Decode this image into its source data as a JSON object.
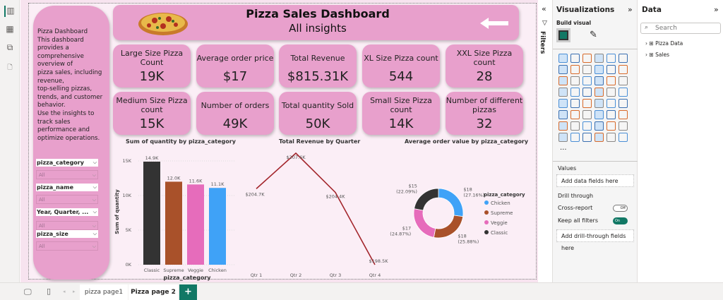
{
  "header": {
    "title": "Pizza Sales Dashboard",
    "subtitle": "All insights"
  },
  "description": "Pizza Dashboard\nThis dashboard provides a comprehensive overview of\n pizza sales, including revenue,\n top-selling pizzas, trends, and customer behavior.\nUse the insights to track sales performance and optimize operations.",
  "slicers": [
    {
      "label": "pizza_category",
      "value": "All"
    },
    {
      "label": "pizza_name",
      "value": "All"
    },
    {
      "label": "Year, Quarter, ...",
      "value": "All"
    },
    {
      "label": "pizza_size",
      "value": "All"
    }
  ],
  "kpis": [
    {
      "label": "Large Size Pizza Count",
      "value": "19K"
    },
    {
      "label": "Average order price",
      "value": "$17"
    },
    {
      "label": "Total Revenue",
      "value": "$815.31K"
    },
    {
      "label": "XL Size Pizza count",
      "value": "544"
    },
    {
      "label": "XXL Size Pizza count",
      "value": "28"
    },
    {
      "label": "Medium Size Pizza count",
      "value": "15K"
    },
    {
      "label": "Number of orders",
      "value": "49K"
    },
    {
      "label": "Total quantity Sold",
      "value": "50K"
    },
    {
      "label": "Small Size Pizza count",
      "value": "14K"
    },
    {
      "label": "Number of different pizzas",
      "value": "32"
    }
  ],
  "chart_data": [
    {
      "type": "bar",
      "title": "Sum of quantity by pizza_category",
      "xlabel": "pizza_category",
      "ylabel": "Sum of quantity",
      "categories": [
        "Classic",
        "Supreme",
        "Veggie",
        "Chicken"
      ],
      "values": [
        14900,
        12000,
        11600,
        11100
      ],
      "data_labels": [
        "14.9K",
        "12.0K",
        "11.6K",
        "11.1K"
      ],
      "yticks": [
        "0K",
        "5K",
        "10K",
        "15K"
      ],
      "ylim": [
        0,
        15000
      ],
      "colors": [
        "#333333",
        "#a9512a",
        "#e66cbb",
        "#3fa2f7"
      ],
      "grid": true
    },
    {
      "type": "line",
      "title": "Total Revenue by Quarter",
      "categories": [
        "Qtr 1",
        "Qtr 2",
        "Qtr 3",
        "Qtr 4"
      ],
      "values": [
        204.7,
        207.6,
        204.4,
        198.5
      ],
      "data_labels": [
        "$204.7K",
        "$207.6K",
        "$204.4K",
        "$198.5K"
      ],
      "color": "#a3262c"
    },
    {
      "type": "pie",
      "title": "Average order value by pizza_category",
      "legend_title": "pizza_category",
      "legend": "right",
      "slices": [
        {
          "name": "Chicken",
          "value": 18,
          "label": "$18",
          "pct": "(27.16%)",
          "share": 27.16,
          "color": "#3fa2f7"
        },
        {
          "name": "Supreme",
          "value": 18,
          "label": "$18",
          "pct": "(25.88%)",
          "share": 25.88,
          "color": "#a9512a"
        },
        {
          "name": "Veggie",
          "value": 17,
          "label": "$17",
          "pct": "(24.87%)",
          "share": 24.87,
          "color": "#e66cbb"
        },
        {
          "name": "Classic",
          "value": 15,
          "label": "$15",
          "pct": "(22.09%)",
          "share": 22.09,
          "color": "#333333"
        }
      ]
    }
  ],
  "filters_label": "Filters",
  "viz": {
    "title": "Visualizations",
    "build": "Build visual",
    "values": "Values",
    "add_data": "Add data fields here",
    "drill": "Drill through",
    "cross": "Cross-report",
    "cross_state": "Off",
    "keep": "Keep all filters",
    "keep_state": "On",
    "add_drill": "Add drill-through fields here",
    "more": "..."
  },
  "data_pane": {
    "title": "Data",
    "search_placeholder": "Search",
    "tables": [
      "Pizza Data",
      "Sales"
    ]
  },
  "pages": {
    "tabs": [
      "pizza page1",
      "Pizza page 2"
    ],
    "add": "+"
  }
}
